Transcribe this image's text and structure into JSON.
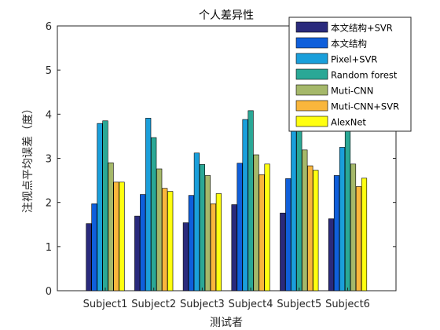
{
  "chart_data": {
    "type": "bar",
    "title": "个人差异性",
    "xlabel": "测试者",
    "ylabel": "注视点平均误差（度）",
    "categories": [
      "Subject1",
      "Subject2",
      "Subject3",
      "Subject4",
      "Subject5",
      "Subject6"
    ],
    "ylim": [
      0,
      6
    ],
    "yticks": [
      "0",
      "1",
      "2",
      "3",
      "4",
      "5",
      "6"
    ],
    "grid": false,
    "legend_position": "top-right",
    "series": [
      {
        "name": "本文结构+SVR",
        "color": "#2a2a7c",
        "values": [
          1.52,
          1.69,
          1.54,
          1.95,
          1.76,
          1.63
        ]
      },
      {
        "name": "本文结构",
        "color": "#0f5fdb",
        "values": [
          1.97,
          2.18,
          2.16,
          2.89,
          2.54,
          2.61
        ]
      },
      {
        "name": "Pixel+SVR",
        "color": "#1a9fdb",
        "values": [
          3.79,
          3.91,
          3.12,
          3.88,
          3.78,
          3.25
        ]
      },
      {
        "name": "Random forest",
        "color": "#2aa896",
        "values": [
          3.85,
          3.47,
          2.86,
          4.08,
          3.95,
          3.7
        ]
      },
      {
        "name": "Muti-CNN",
        "color": "#a5b86a",
        "values": [
          2.9,
          2.76,
          2.61,
          3.08,
          3.19,
          2.87
        ]
      },
      {
        "name": "Muti-CNN+SVR",
        "color": "#f9b63c",
        "values": [
          2.46,
          2.32,
          1.97,
          2.63,
          2.83,
          2.36
        ]
      },
      {
        "name": "AlexNet",
        "color": "#ffff10",
        "values": [
          2.46,
          2.25,
          2.2,
          2.87,
          2.73,
          2.55
        ]
      }
    ]
  }
}
